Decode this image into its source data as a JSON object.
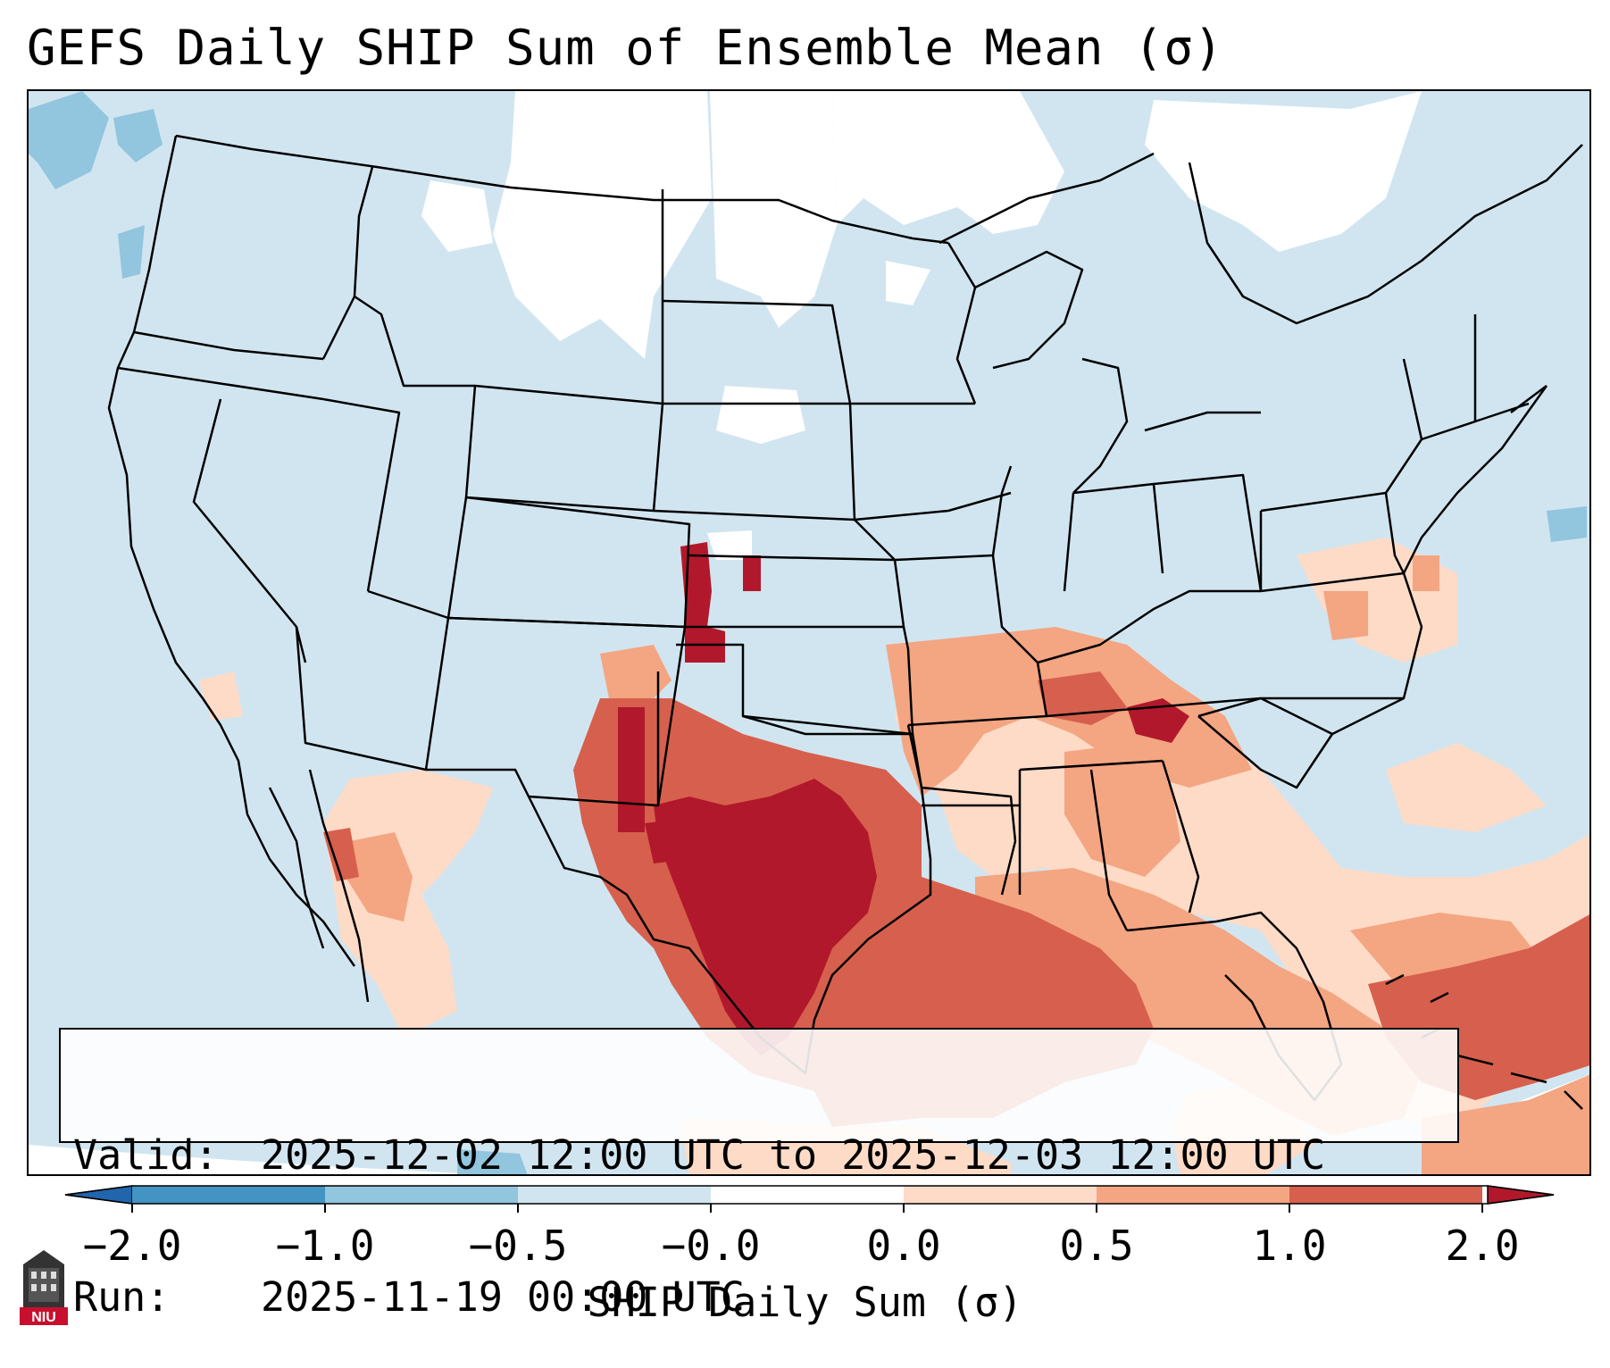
{
  "title": "GEFS Daily SHIP Sum of Ensemble Mean (σ)",
  "info": {
    "valid_label": "Valid:",
    "valid_value": "2025-12-02 12:00 UTC to 2025-12-03 12:00 UTC",
    "run_label": "Run:",
    "run_value": "2025-11-19 00:00 UTC"
  },
  "colorbar": {
    "label": "SHIP Daily Sum (σ)",
    "ticks": [
      "−2.0",
      "−1.0",
      "−0.5",
      "−0.0",
      "0.0",
      "0.5",
      "1.0",
      "2.0"
    ],
    "colors": [
      "#2166ac",
      "#4393c3",
      "#92c5de",
      "#d1e5f0",
      "#ffffff",
      "#fddbc7",
      "#f4a582",
      "#d6604d",
      "#b2182b"
    ],
    "extend": "both"
  },
  "map": {
    "projection": "lambert-conformal",
    "region": "CONUS",
    "ocean_background": "#d1e5f0"
  },
  "logo": {
    "text": "NIU"
  }
}
